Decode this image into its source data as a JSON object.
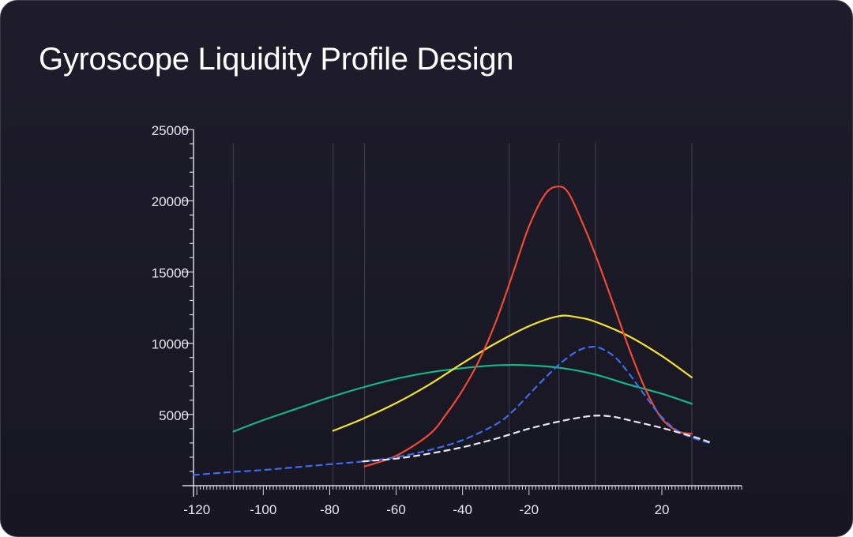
{
  "title": "Gyroscope Liquidity Profile Design",
  "chart_data": {
    "type": "line",
    "title": "Gyroscope Liquidity Profile Design",
    "xlabel": "",
    "ylabel": "",
    "xlim": [
      -121,
      44
    ],
    "ylim": [
      0,
      25000
    ],
    "x_ticks": [
      -120,
      -100,
      -80,
      -60,
      -40,
      -20,
      20
    ],
    "y_ticks": [
      5000,
      10000,
      15000,
      20000,
      25000
    ],
    "y_minor_step": 1000,
    "x_minor_step": 1,
    "grid": "vertical lines only",
    "vertical_gridlines_x": [
      -109,
      -79,
      -69.5,
      -26,
      -11,
      0,
      29
    ],
    "legend": "none",
    "series": [
      {
        "color": "#12b886",
        "style": "solid",
        "points": [
          [
            -109,
            3800
          ],
          [
            -100,
            4600
          ],
          [
            -90,
            5400
          ],
          [
            -80,
            6200
          ],
          [
            -70,
            6900
          ],
          [
            -60,
            7500
          ],
          [
            -50,
            7950
          ],
          [
            -40,
            8250
          ],
          [
            -30,
            8450
          ],
          [
            -20,
            8450
          ],
          [
            -10,
            8250
          ],
          [
            0,
            7800
          ],
          [
            10,
            7100
          ],
          [
            20,
            6450
          ],
          [
            29,
            5750
          ]
        ]
      },
      {
        "color": "#f4e22c",
        "style": "solid",
        "points": [
          [
            -79,
            3850
          ],
          [
            -70,
            4700
          ],
          [
            -60,
            5800
          ],
          [
            -50,
            7100
          ],
          [
            -40,
            8600
          ],
          [
            -30,
            10000
          ],
          [
            -20,
            11200
          ],
          [
            -11,
            11900
          ],
          [
            -5,
            11800
          ],
          [
            0,
            11500
          ],
          [
            10,
            10500
          ],
          [
            20,
            9100
          ],
          [
            29,
            7600
          ]
        ]
      },
      {
        "color": "#f04a35",
        "style": "solid",
        "points": [
          [
            -69.5,
            1350
          ],
          [
            -60,
            2100
          ],
          [
            -50,
            3600
          ],
          [
            -45,
            5000
          ],
          [
            -40,
            6700
          ],
          [
            -35,
            8800
          ],
          [
            -30,
            11500
          ],
          [
            -25,
            14800
          ],
          [
            -20,
            18200
          ],
          [
            -15,
            20500
          ],
          [
            -11,
            21000
          ],
          [
            -8,
            20500
          ],
          [
            -4,
            18500
          ],
          [
            0,
            16200
          ],
          [
            5,
            13000
          ],
          [
            10,
            9700
          ],
          [
            15,
            6800
          ],
          [
            20,
            4700
          ],
          [
            25,
            3800
          ],
          [
            29,
            3650
          ]
        ]
      },
      {
        "color": "#3d6cf0",
        "style": "dashed",
        "points": [
          [
            -121,
            750
          ],
          [
            -110,
            950
          ],
          [
            -100,
            1100
          ],
          [
            -90,
            1300
          ],
          [
            -80,
            1500
          ],
          [
            -70,
            1700
          ],
          [
            -60,
            2000
          ],
          [
            -50,
            2500
          ],
          [
            -40,
            3200
          ],
          [
            -30,
            4300
          ],
          [
            -25,
            5200
          ],
          [
            -20,
            6400
          ],
          [
            -15,
            7600
          ],
          [
            -10,
            8700
          ],
          [
            -5,
            9500
          ],
          [
            -1,
            9750
          ],
          [
            2,
            9600
          ],
          [
            6,
            9000
          ],
          [
            10,
            7900
          ],
          [
            15,
            6300
          ],
          [
            20,
            4800
          ],
          [
            25,
            3800
          ],
          [
            30,
            3300
          ],
          [
            35,
            2950
          ]
        ]
      },
      {
        "color": "#e8e8ee",
        "style": "dashed",
        "points": [
          [
            -70,
            1700
          ],
          [
            -60,
            1900
          ],
          [
            -50,
            2250
          ],
          [
            -40,
            2700
          ],
          [
            -30,
            3300
          ],
          [
            -20,
            4000
          ],
          [
            -10,
            4550
          ],
          [
            -1,
            4900
          ],
          [
            5,
            4850
          ],
          [
            10,
            4600
          ],
          [
            20,
            4050
          ],
          [
            30,
            3400
          ],
          [
            35,
            3000
          ]
        ]
      }
    ]
  }
}
